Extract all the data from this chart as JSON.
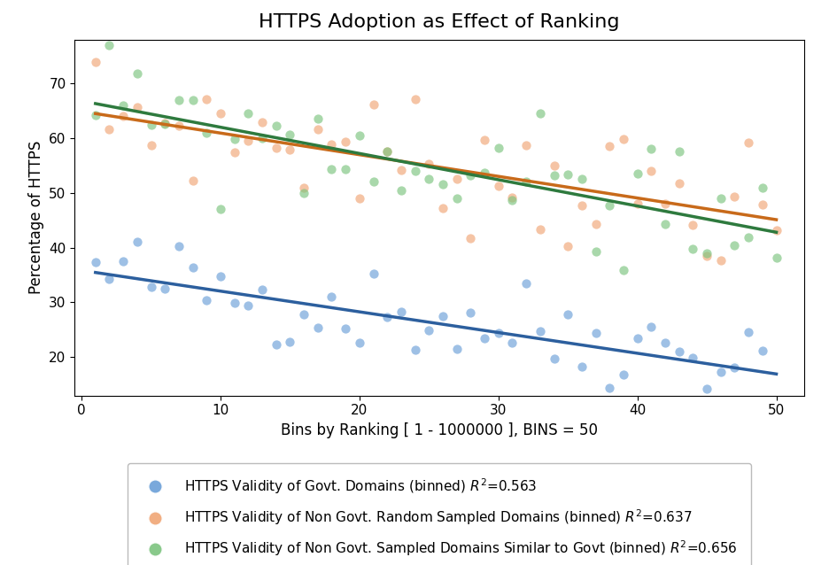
{
  "title": "HTTPS Adoption as Effect of Ranking",
  "xlabel": "Bins by Ranking [ 1 - 1000000 ], BINS = 50",
  "ylabel": "Percentage of HTTPS",
  "xlim": [
    -0.5,
    52
  ],
  "ylim": [
    13,
    78
  ],
  "yticks": [
    20,
    30,
    40,
    50,
    60,
    70
  ],
  "xticks": [
    0,
    10,
    20,
    30,
    40,
    50
  ],
  "govt_color": "#6a9fd8",
  "non_govt_random_color": "#f0a575",
  "non_govt_similar_color": "#7cc47e",
  "govt_line_color": "#2c5f9e",
  "non_govt_random_line_color": "#c86a1a",
  "non_govt_similar_line_color": "#2e7a3e",
  "govt_intercept": 35.5,
  "govt_slope": -0.325,
  "non_govt_random_intercept": 65.0,
  "non_govt_random_slope": -0.38,
  "non_govt_similar_intercept": 65.5,
  "non_govt_similar_slope": -0.43,
  "govt_noise": 4.5,
  "non_govt_random_noise": 5.5,
  "non_govt_similar_noise": 6.0,
  "legend_labels": [
    "HTTPS Validity of Govt. Domains (binned) $R^2$=0.563",
    "HTTPS Validity of Non Govt. Random Sampled Domains (binned) $R^2$=0.637",
    "HTTPS Validity of Non Govt. Sampled Domains Similar to Govt (binned) $R^2$=0.656"
  ],
  "figsize": [
    9.36,
    6.38
  ],
  "dpi": 100,
  "alpha_scatter": 0.65,
  "alpha_ci": 0.18,
  "marker_size": 55
}
